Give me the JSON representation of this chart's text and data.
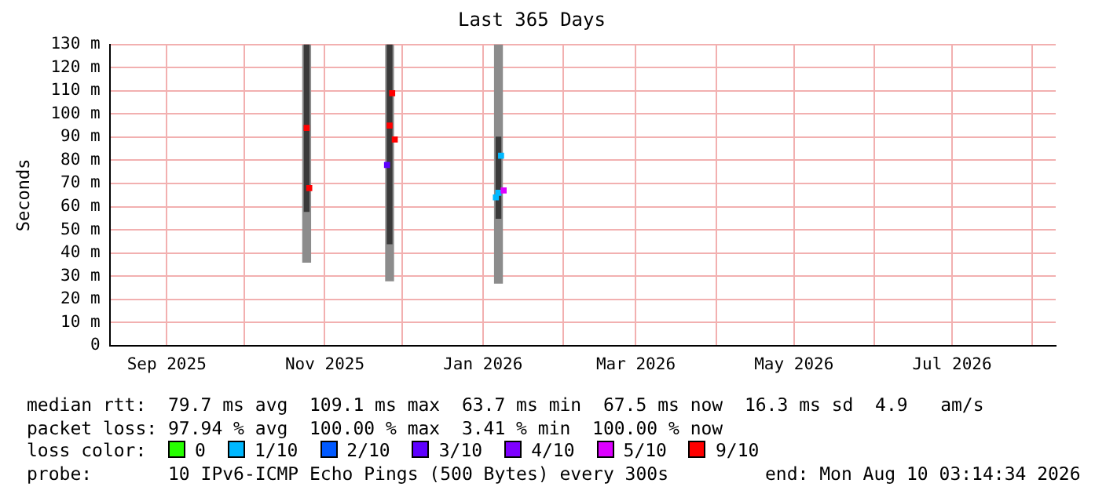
{
  "chart_data": {
    "type": "bar",
    "title": "Last 365 Days",
    "ylabel": "Seconds",
    "xlim": [
      "2025-08-10",
      "2026-08-10"
    ],
    "xticks": [
      {
        "value": "2025-09-01",
        "label": "Sep 2025"
      },
      {
        "value": "2025-10-01",
        "label": null
      },
      {
        "value": "2025-11-01",
        "label": "Nov 2025"
      },
      {
        "value": "2025-12-01",
        "label": null
      },
      {
        "value": "2026-01-01",
        "label": "Jan 2026"
      },
      {
        "value": "2026-02-01",
        "label": null
      },
      {
        "value": "2026-03-01",
        "label": "Mar 2026"
      },
      {
        "value": "2026-04-01",
        "label": null
      },
      {
        "value": "2026-05-01",
        "label": "May 2026"
      },
      {
        "value": "2026-06-01",
        "label": null
      },
      {
        "value": "2026-07-01",
        "label": "Jul 2026"
      },
      {
        "value": "2026-08-01",
        "label": null
      }
    ],
    "ylim": [
      0,
      130
    ],
    "yticks": [
      0,
      {
        "value": 10,
        "label": "10 m"
      },
      {
        "value": 20,
        "label": "20 m"
      },
      {
        "value": 30,
        "label": "30 m"
      },
      {
        "value": 40,
        "label": "40 m"
      },
      {
        "value": 50,
        "label": "50 m"
      },
      {
        "value": 60,
        "label": "60 m"
      },
      {
        "value": 70,
        "label": "70 m"
      },
      {
        "value": 80,
        "label": "80 m"
      },
      {
        "value": 90,
        "label": "90 m"
      },
      {
        "value": 100,
        "label": "100 m"
      },
      {
        "value": 110,
        "label": "110 m"
      },
      {
        "value": 120,
        "label": "120 m"
      },
      {
        "value": 130,
        "label": "130 m"
      }
    ],
    "grid": true,
    "legend": "bottom",
    "legend_title": "loss color:",
    "marker": "square",
    "series": [
      {
        "color": "#8c8c8c",
        "x": [
          "2025-10-25",
          "2025-11-26",
          "2026-01-07"
        ],
        "base": [
          36,
          28,
          27
        ],
        "values": [
          94,
          102,
          103
        ]
      },
      {
        "color": "#3a3a3a",
        "x": [
          "2025-10-25",
          "2025-11-26",
          "2026-01-07"
        ],
        "base": [
          58,
          44,
          55
        ],
        "values": [
          72,
          86,
          35
        ]
      },
      {
        "type": "scatter",
        "name": "0",
        "color": "#26ff00"
      },
      {
        "type": "scatter",
        "name": "1/10",
        "color": "#00b8ff",
        "x": [
          "2026-01-06",
          "2026-01-07",
          "2026-01-08"
        ],
        "values": [
          64,
          66,
          82
        ]
      },
      {
        "type": "scatter",
        "name": "2/10",
        "color": "#0059ff"
      },
      {
        "type": "scatter",
        "name": "3/10",
        "color": "#5e00ff",
        "x": [
          "2025-11-25"
        ],
        "values": [
          78
        ]
      },
      {
        "type": "scatter",
        "name": "4/10",
        "color": "#7e00ff"
      },
      {
        "type": "scatter",
        "name": "5/10",
        "color": "#dd00ff",
        "x": [
          "2026-01-09"
        ],
        "values": [
          67
        ]
      },
      {
        "type": "scatter",
        "name": "9/10",
        "color": "#ff0000",
        "x": [
          "2025-10-25",
          "2025-10-26",
          "2025-11-26",
          "2025-11-27",
          "2025-11-28"
        ],
        "values": [
          94,
          68,
          95,
          109,
          89
        ]
      }
    ],
    "annotations": [
      "median rtt:  79.7 ms avg  109.1 ms max  63.7 ms min  67.5 ms now  16.3 ms sd  4.9   am/s",
      "packet loss: 97.94 % avg  100.00 % max  3.41 % min  100.00 % now",
      "probe:       10 IPv6-ICMP Echo Pings (500 Bytes) every 300s",
      "end: Mon Aug 10 03:14:34 2026"
    ]
  }
}
